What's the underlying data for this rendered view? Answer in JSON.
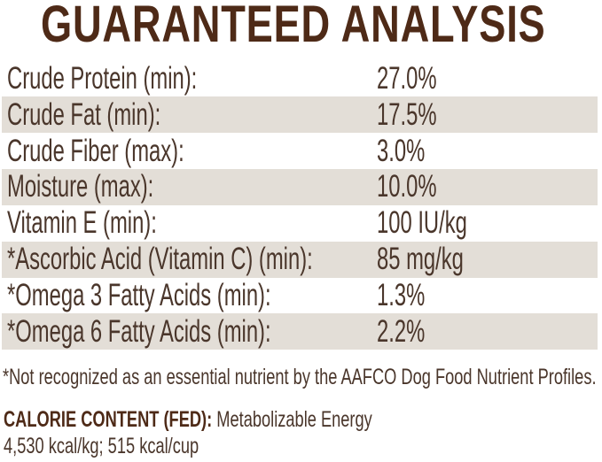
{
  "header": {
    "title": "GUARANTEED ANALYSIS"
  },
  "table": {
    "rows": [
      {
        "label": "Crude Protein (min):",
        "value": "27.0%"
      },
      {
        "label": "Crude Fat (min):",
        "value": "17.5%"
      },
      {
        "label": "Crude Fiber (max):",
        "value": "3.0%"
      },
      {
        "label": "Moisture (max):",
        "value": "10.0%"
      },
      {
        "label": "Vitamin E (min):",
        "value": "100 IU/kg"
      },
      {
        "label": "*Ascorbic Acid (Vitamin C) (min):",
        "value": "85 mg/kg"
      },
      {
        "label": "*Omega 3 Fatty Acids (min):",
        "value": "1.3%"
      },
      {
        "label": "*Omega 6 Fatty Acids (min):",
        "value": "2.2%"
      }
    ]
  },
  "footnote": "*Not recognized as an essential nutrient by the AAFCO Dog Food Nutrient Profiles.",
  "calorie_content": {
    "heading": "CALORIE CONTENT (FED):",
    "description": "Metabolizable Energy",
    "values_line": "4,530 kcal/kg; 515 kcal/cup"
  },
  "colors": {
    "title_text": "#4e2a17",
    "body_text": "#4a362b",
    "row_stripe": "#e3ded7"
  }
}
